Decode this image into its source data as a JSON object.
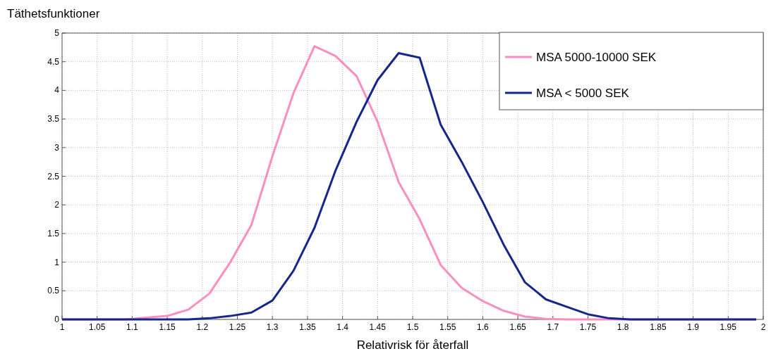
{
  "chart_data": {
    "type": "line",
    "title": "Täthetsfunktioner",
    "xlabel": "Relativrisk för återfall",
    "xlim": [
      1,
      2
    ],
    "xticks": [
      1,
      1.05,
      1.1,
      1.15,
      1.2,
      1.25,
      1.3,
      1.35,
      1.4,
      1.45,
      1.5,
      1.55,
      1.6,
      1.65,
      1.7,
      1.75,
      1.8,
      1.85,
      1.9,
      1.95,
      2
    ],
    "ylim": [
      0,
      5
    ],
    "yticks": [
      0,
      0.5,
      1,
      1.5,
      2,
      2.5,
      3,
      3.5,
      4,
      4.5,
      5
    ],
    "grid": true,
    "legend": "top right",
    "line_style": "solid",
    "marker": "none",
    "series": [
      {
        "name": "MSA 5000-10000 SEK",
        "color": "#f98fc0",
        "x": [
          1,
          1.09,
          1.12,
          1.15,
          1.18,
          1.21,
          1.24,
          1.27,
          1.3,
          1.33,
          1.36,
          1.39,
          1.42,
          1.45,
          1.48,
          1.51,
          1.54,
          1.57,
          1.6,
          1.63,
          1.66,
          1.69,
          1.72,
          1.99
        ],
        "values": [
          0,
          0,
          0.03,
          0.06,
          0.17,
          0.45,
          1.0,
          1.65,
          2.85,
          3.95,
          4.77,
          4.6,
          4.25,
          3.45,
          2.4,
          1.75,
          0.95,
          0.55,
          0.32,
          0.15,
          0.05,
          0.01,
          0,
          0
        ]
      },
      {
        "name": "MSA < 5000 SEK",
        "color": "#13288a",
        "x": [
          1,
          1.18,
          1.21,
          1.24,
          1.27,
          1.3,
          1.33,
          1.36,
          1.39,
          1.42,
          1.45,
          1.48,
          1.51,
          1.54,
          1.57,
          1.6,
          1.63,
          1.66,
          1.69,
          1.72,
          1.75,
          1.78,
          1.81,
          1.99
        ],
        "values": [
          0,
          0,
          0.02,
          0.06,
          0.12,
          0.33,
          0.85,
          1.6,
          2.6,
          3.45,
          4.18,
          4.65,
          4.57,
          3.4,
          2.75,
          2.05,
          1.3,
          0.65,
          0.35,
          0.22,
          0.09,
          0.02,
          0,
          0
        ]
      }
    ]
  }
}
